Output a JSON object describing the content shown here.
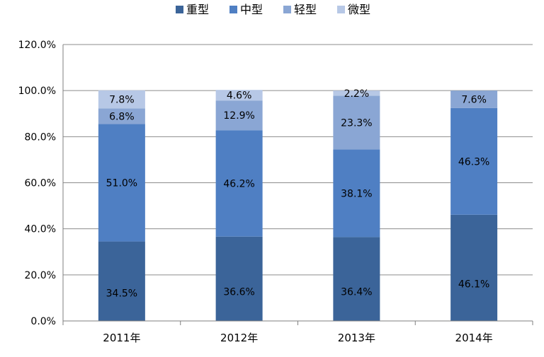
{
  "colors": {
    "重型": "#3b6499",
    "中型": "#4f7fc3",
    "轻型": "#8aa6d4",
    "微型": "#b7c8e6",
    "grid": "#8c8c8c",
    "axis": "#7f7f7f",
    "text": "#000000"
  },
  "chart_data": {
    "type": "bar",
    "stacked": true,
    "categories": [
      "2011年",
      "2012年",
      "2013年",
      "2014年"
    ],
    "series": [
      {
        "name": "重型",
        "values": [
          34.5,
          36.6,
          36.4,
          46.1
        ],
        "labels": [
          "34.5%",
          "36.6%",
          "36.4%",
          "46.1%"
        ]
      },
      {
        "name": "中型",
        "values": [
          51.0,
          46.2,
          38.1,
          46.3
        ],
        "labels": [
          "51.0%",
          "46.2%",
          "38.1%",
          "46.3%"
        ]
      },
      {
        "name": "轻型",
        "values": [
          6.8,
          12.9,
          23.3,
          7.6
        ],
        "labels": [
          "6.8%",
          "12.9%",
          "23.3%",
          "7.6%"
        ]
      },
      {
        "name": "微型",
        "values": [
          7.8,
          4.6,
          2.2,
          0
        ],
        "labels": [
          "7.8%",
          "4.6%",
          "2.2%",
          ""
        ]
      }
    ],
    "yticks": [
      0,
      20,
      40,
      60,
      80,
      100,
      120
    ],
    "ytick_labels": [
      "0.0%",
      "20.0%",
      "40.0%",
      "60.0%",
      "80.0%",
      "100.0%",
      "120.0%"
    ],
    "ylim": [
      0,
      120
    ],
    "grid": true,
    "legend": "top-center"
  }
}
